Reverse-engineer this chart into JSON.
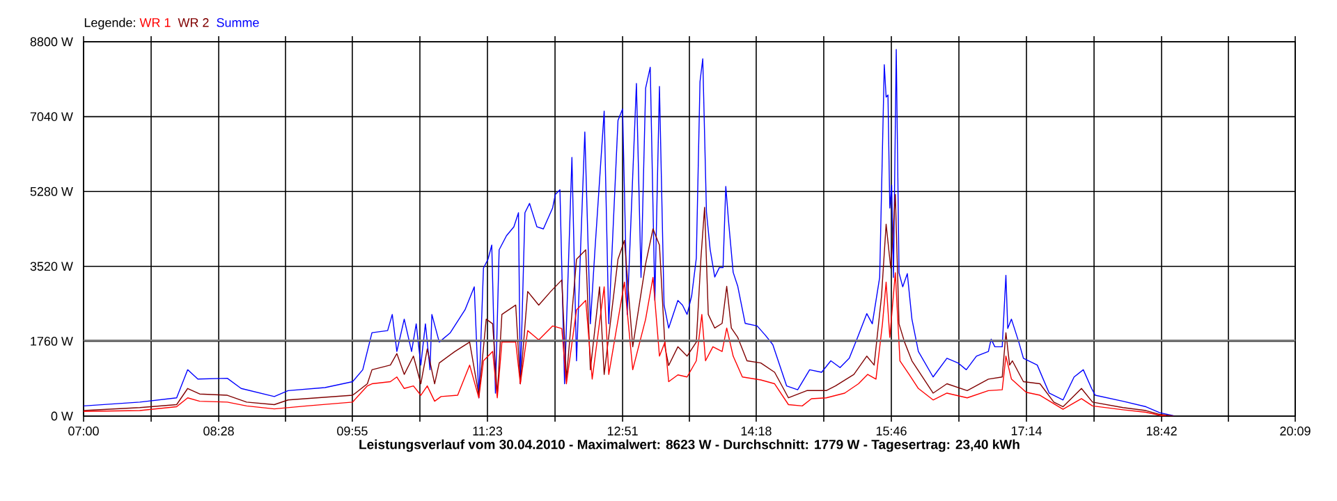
{
  "chart_data": {
    "type": "line",
    "xlabel": "Leistungsverlauf vom 30.04.2010 - Maximalwert: 8623 W - Durchschnitt: 1779 W - Tagesertrag: 23,40 kWh",
    "legend_title": "Legende:",
    "legend": "top left",
    "grid": true,
    "xlim": [
      7,
      20.15
    ],
    "xticks": [
      {
        "value": 7,
        "label": "07:00"
      },
      {
        "value": 7.7333,
        "label": null
      },
      {
        "value": 8.4667,
        "label": "08:28"
      },
      {
        "value": 9.1917,
        "label": null
      },
      {
        "value": 9.9167,
        "label": "09:55"
      },
      {
        "value": 10.65,
        "label": null
      },
      {
        "value": 11.3833,
        "label": "11:23"
      },
      {
        "value": 12.1167,
        "label": null
      },
      {
        "value": 12.85,
        "label": "12:51"
      },
      {
        "value": 13.575,
        "label": null
      },
      {
        "value": 14.3,
        "label": "14:18"
      },
      {
        "value": 15.0333,
        "label": null
      },
      {
        "value": 15.7667,
        "label": "15:46"
      },
      {
        "value": 16.5,
        "label": null
      },
      {
        "value": 17.2333,
        "label": "17:14"
      },
      {
        "value": 17.9667,
        "label": null
      },
      {
        "value": 18.7,
        "label": "18:42"
      },
      {
        "value": 19.425,
        "label": null
      },
      {
        "value": 20.15,
        "label": "20:09"
      }
    ],
    "ylim": [
      0,
      8800
    ],
    "yticks": [
      {
        "value": 0,
        "label": "0 W"
      },
      {
        "value": 1760,
        "label": "1760 W"
      },
      {
        "value": 3520,
        "label": "3520 W"
      },
      {
        "value": 5280,
        "label": "5280 W"
      },
      {
        "value": 7040,
        "label": "7040 W"
      },
      {
        "value": 8800,
        "label": "8800 W"
      }
    ],
    "ref_lines": [
      {
        "axis": "y",
        "value": 1779,
        "color": "#808080"
      }
    ],
    "series": [
      {
        "name": "WR 1",
        "color": "#ff0000",
        "x": [
          7.0,
          7.61,
          8.01,
          8.13,
          8.26,
          8.56,
          8.77,
          9.07,
          9.42,
          9.92,
          10.08,
          10.13,
          10.33,
          10.4,
          10.48,
          10.58,
          10.66,
          10.73,
          10.81,
          10.88,
          11.06,
          11.19,
          11.29,
          11.34,
          11.44,
          11.49,
          11.54,
          11.69,
          11.74,
          11.82,
          11.94,
          12.09,
          12.19,
          12.24,
          12.35,
          12.45,
          12.52,
          12.65,
          12.7,
          12.87,
          12.96,
          13.1,
          13.18,
          13.25,
          13.31,
          13.35,
          13.45,
          13.55,
          13.65,
          13.71,
          13.75,
          13.83,
          13.93,
          13.98,
          14.05,
          14.15,
          14.35,
          14.5,
          14.65,
          14.8,
          14.9,
          15.06,
          15.26,
          15.41,
          15.51,
          15.6,
          15.67,
          15.71,
          15.75,
          15.81,
          15.86,
          15.96,
          16.06,
          16.22,
          16.37,
          16.59,
          16.82,
          16.97,
          17.01,
          17.07,
          17.23,
          17.38,
          17.63,
          17.83,
          17.95,
          18.28,
          18.53,
          18.68,
          18.75
        ],
        "values": [
          110,
          130,
          220,
          430,
          350,
          330,
          240,
          170,
          240,
          330,
          710,
          760,
          810,
          920,
          650,
          710,
          490,
          710,
          350,
          460,
          490,
          1200,
          430,
          1300,
          1520,
          430,
          1740,
          1740,
          760,
          2010,
          1790,
          2120,
          2060,
          760,
          2500,
          2720,
          870,
          3040,
          980,
          3150,
          1090,
          2280,
          3260,
          1410,
          1740,
          810,
          970,
          920,
          1300,
          2390,
          1300,
          1630,
          1520,
          2070,
          1410,
          920,
          850,
          760,
          270,
          240,
          410,
          430,
          540,
          760,
          980,
          870,
          2170,
          3150,
          1850,
          3370,
          1300,
          980,
          650,
          380,
          540,
          430,
          600,
          620,
          1410,
          870,
          560,
          490,
          160,
          410,
          240,
          150,
          90,
          20,
          0
        ]
      },
      {
        "name": "WR 2",
        "color": "#800000",
        "x": [
          7.0,
          7.61,
          8.01,
          8.13,
          8.26,
          8.56,
          8.77,
          9.07,
          9.22,
          9.92,
          10.08,
          10.13,
          10.33,
          10.4,
          10.48,
          10.58,
          10.66,
          10.73,
          10.81,
          10.86,
          11.03,
          11.19,
          11.29,
          11.37,
          11.44,
          11.49,
          11.54,
          11.69,
          11.74,
          11.82,
          11.94,
          12.07,
          12.19,
          12.24,
          12.35,
          12.45,
          12.5,
          12.6,
          12.65,
          12.8,
          12.87,
          12.96,
          13.1,
          13.18,
          13.25,
          13.31,
          13.35,
          13.45,
          13.55,
          13.65,
          13.7,
          13.74,
          13.78,
          13.85,
          13.93,
          13.98,
          14.03,
          14.1,
          14.2,
          14.35,
          14.5,
          14.65,
          14.85,
          15.06,
          15.16,
          15.36,
          15.5,
          15.58,
          15.66,
          15.71,
          15.76,
          15.81,
          15.85,
          15.91,
          15.99,
          16.22,
          16.37,
          16.59,
          16.82,
          16.97,
          17.01,
          17.05,
          17.08,
          17.2,
          17.38,
          17.53,
          17.63,
          17.83,
          17.95,
          18.28,
          18.53,
          18.68,
          18.83
        ],
        "values": [
          130,
          200,
          270,
          650,
          520,
          490,
          330,
          270,
          380,
          490,
          760,
          1090,
          1200,
          1470,
          980,
          1410,
          760,
          1580,
          760,
          1250,
          1520,
          1740,
          490,
          2280,
          2170,
          490,
          2390,
          2610,
          760,
          2930,
          2610,
          2930,
          3200,
          870,
          3690,
          3910,
          1090,
          3040,
          980,
          3690,
          4130,
          1630,
          3580,
          4400,
          4020,
          1630,
          1190,
          1630,
          1410,
          1740,
          3710,
          4910,
          2390,
          2070,
          2180,
          3050,
          2070,
          1850,
          1300,
          1250,
          1030,
          430,
          600,
          600,
          710,
          980,
          1410,
          1200,
          2820,
          4510,
          3480,
          5210,
          2170,
          1740,
          1300,
          540,
          760,
          600,
          870,
          920,
          1960,
          1200,
          1300,
          810,
          760,
          330,
          220,
          650,
          330,
          200,
          130,
          40,
          0
        ]
      },
      {
        "name": "Summe",
        "color": "#0000ff",
        "x": [
          7.0,
          7.61,
          8.01,
          8.13,
          8.24,
          8.56,
          8.71,
          9.07,
          9.22,
          9.62,
          9.92,
          10.03,
          10.13,
          10.3,
          10.35,
          10.4,
          10.48,
          10.56,
          10.61,
          10.66,
          10.71,
          10.76,
          10.78,
          10.86,
          10.98,
          11.14,
          11.24,
          11.29,
          11.34,
          11.39,
          11.43,
          11.47,
          11.51,
          11.59,
          11.67,
          11.72,
          11.74,
          11.79,
          11.84,
          11.92,
          11.99,
          12.09,
          12.12,
          12.17,
          12.22,
          12.3,
          12.35,
          12.44,
          12.5,
          12.55,
          12.65,
          12.7,
          12.8,
          12.85,
          12.9,
          13.0,
          13.05,
          13.1,
          13.15,
          13.2,
          13.25,
          13.3,
          13.35,
          13.45,
          13.5,
          13.55,
          13.6,
          13.65,
          13.69,
          13.72,
          13.76,
          13.8,
          13.85,
          13.9,
          13.94,
          13.97,
          14.0,
          14.05,
          14.1,
          14.18,
          14.31,
          14.4,
          14.48,
          14.63,
          14.75,
          14.88,
          15.01,
          15.11,
          15.21,
          15.31,
          15.4,
          15.5,
          15.56,
          15.64,
          15.69,
          15.71,
          15.73,
          15.75,
          15.77,
          15.79,
          15.82,
          15.85,
          15.89,
          15.94,
          15.99,
          16.06,
          16.22,
          16.37,
          16.49,
          16.58,
          16.69,
          16.82,
          16.85,
          16.89,
          16.97,
          17.01,
          17.03,
          17.07,
          17.15,
          17.2,
          17.35,
          17.48,
          17.63,
          17.75,
          17.85,
          17.94,
          17.98,
          18.28,
          18.53,
          18.68,
          18.83
        ],
        "values": [
          240,
          330,
          430,
          1090,
          870,
          890,
          650,
          460,
          600,
          670,
          810,
          1090,
          1960,
          2010,
          2390,
          1520,
          2280,
          1520,
          2170,
          1200,
          2170,
          1090,
          2390,
          1740,
          1960,
          2500,
          3040,
          430,
          3480,
          3690,
          4020,
          540,
          3910,
          4240,
          4450,
          4780,
          760,
          4780,
          5000,
          4450,
          4400,
          4890,
          5210,
          5320,
          760,
          6080,
          1300,
          6680,
          2170,
          3910,
          7170,
          2170,
          6950,
          7220,
          2390,
          7820,
          3260,
          7710,
          8200,
          2720,
          7750,
          2610,
          2070,
          2720,
          2610,
          2390,
          2830,
          3710,
          7860,
          8400,
          4800,
          3920,
          3270,
          3490,
          3490,
          5400,
          4580,
          3380,
          3050,
          2180,
          2120,
          1900,
          1680,
          710,
          620,
          1090,
          1030,
          1300,
          1140,
          1360,
          1850,
          2410,
          2170,
          3260,
          8260,
          7500,
          7550,
          4890,
          5430,
          3260,
          8620,
          3370,
          3040,
          3350,
          2280,
          1520,
          920,
          1360,
          1250,
          1090,
          1410,
          1520,
          1810,
          1630,
          1630,
          3310,
          2060,
          2280,
          1740,
          1360,
          1200,
          540,
          380,
          920,
          1090,
          650,
          490,
          350,
          220,
          80,
          10
        ]
      }
    ]
  }
}
